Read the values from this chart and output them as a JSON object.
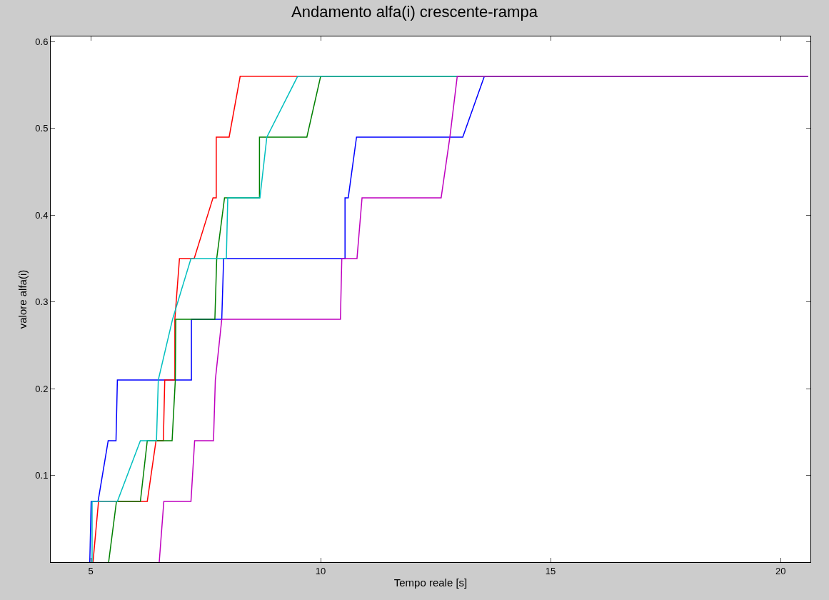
{
  "chart_data": {
    "type": "line",
    "title": "Andamento alfa(i) crescente-rampa",
    "xlabel": "Tempo reale [s]",
    "ylabel": "valore alfa(i)",
    "xlim": [
      4.13,
      20.65
    ],
    "ylim": [
      0,
      0.606
    ],
    "xticks": [
      5,
      10,
      15,
      20
    ],
    "yticks": [
      0.1,
      0.2,
      0.3,
      0.4,
      0.5,
      0.6
    ],
    "marker": "none",
    "line_style": "solid",
    "series": [
      {
        "color": "#0000ff",
        "x": [
          4.98,
          5.01,
          5.16,
          5.38,
          5.55,
          5.58,
          7.19,
          7.19,
          7.85,
          7.89,
          10.53,
          10.53,
          10.6,
          10.78,
          13.09,
          13.56,
          20.6
        ],
        "values": [
          0,
          0.07,
          0.07,
          0.14,
          0.14,
          0.21,
          0.21,
          0.28,
          0.28,
          0.35,
          0.35,
          0.42,
          0.42,
          0.49,
          0.49,
          0.56,
          0.56
        ]
      },
      {
        "color": "#ff0000",
        "x": [
          5.05,
          5.17,
          6.23,
          6.42,
          6.58,
          6.61,
          6.83,
          6.83,
          6.93,
          7.25,
          7.66,
          7.73,
          7.73,
          8.01,
          8.25,
          20.6
        ],
        "values": [
          0,
          0.07,
          0.07,
          0.14,
          0.14,
          0.21,
          0.21,
          0.28,
          0.35,
          0.35,
          0.42,
          0.42,
          0.49,
          0.49,
          0.56,
          0.56
        ]
      },
      {
        "color": "#008000",
        "x": [
          5.39,
          5.56,
          6.08,
          6.23,
          6.77,
          6.84,
          6.85,
          7.7,
          7.74,
          7.91,
          8.67,
          8.67,
          9.7,
          10.0,
          20.6
        ],
        "values": [
          0,
          0.07,
          0.07,
          0.14,
          0.14,
          0.21,
          0.28,
          0.28,
          0.35,
          0.42,
          0.42,
          0.49,
          0.49,
          0.56,
          0.56
        ]
      },
      {
        "color": "#00bfbf",
        "x": [
          5.03,
          5.03,
          5.58,
          6.08,
          6.43,
          6.47,
          6.78,
          7.18,
          7.95,
          7.98,
          8.68,
          8.83,
          9.5,
          20.6
        ],
        "values": [
          0,
          0.07,
          0.07,
          0.14,
          0.14,
          0.21,
          0.28,
          0.35,
          0.35,
          0.42,
          0.42,
          0.49,
          0.56,
          0.56
        ]
      },
      {
        "color": "#bf00bf",
        "x": [
          6.49,
          6.59,
          7.18,
          7.26,
          7.67,
          7.71,
          7.85,
          10.43,
          10.46,
          10.79,
          10.9,
          12.62,
          12.81,
          12.97,
          20.6
        ],
        "values": [
          0,
          0.07,
          0.07,
          0.14,
          0.14,
          0.21,
          0.28,
          0.28,
          0.35,
          0.35,
          0.42,
          0.42,
          0.49,
          0.56,
          0.56
        ]
      }
    ]
  }
}
